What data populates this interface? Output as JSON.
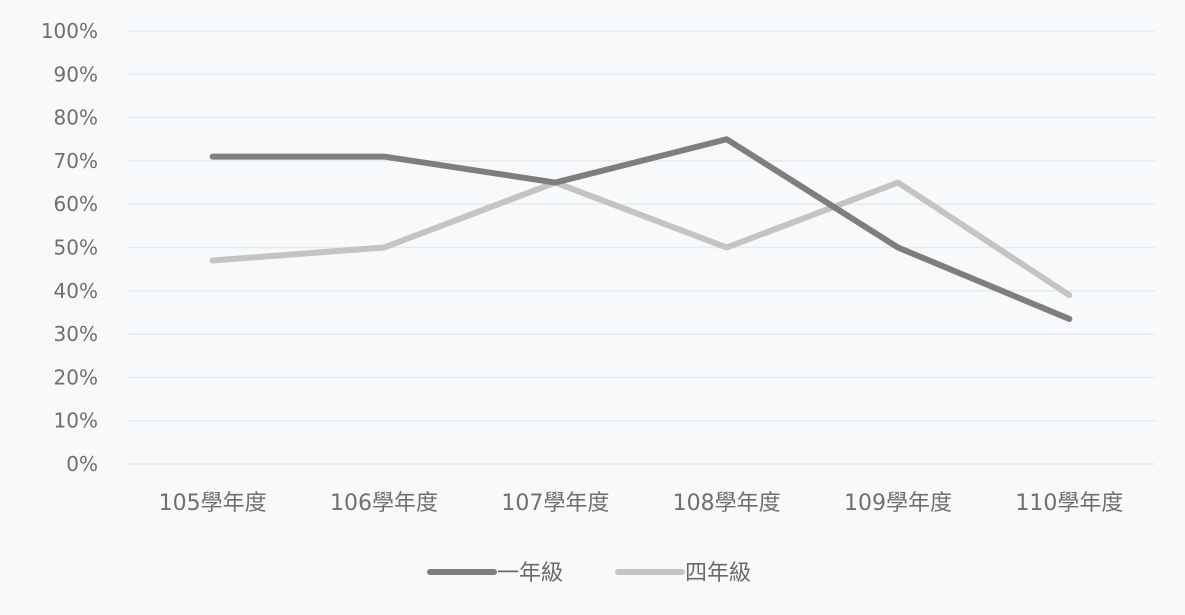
{
  "chart_data": {
    "type": "line",
    "categories": [
      "105學年度",
      "106學年度",
      "107學年度",
      "108學年度",
      "109學年度",
      "110學年度"
    ],
    "series": [
      {
        "name": "一年級",
        "values": [
          71,
          71,
          65,
          75,
          50,
          33.5
        ],
        "color": "#7e7e7e"
      },
      {
        "name": "四年級",
        "values": [
          47,
          50,
          65,
          50,
          65,
          39
        ],
        "color": "#c4c4c4"
      }
    ],
    "ylim": [
      0,
      100
    ],
    "yticks": [
      "0%",
      "10%",
      "20%",
      "30%",
      "40%",
      "50%",
      "60%",
      "70%",
      "80%",
      "90%",
      "100%"
    ],
    "y_tick_values": [
      0,
      10,
      20,
      30,
      40,
      50,
      60,
      70,
      80,
      90,
      100
    ],
    "grid": true,
    "legend_position": "bottom",
    "gridline_color": "#e3eaf0"
  }
}
